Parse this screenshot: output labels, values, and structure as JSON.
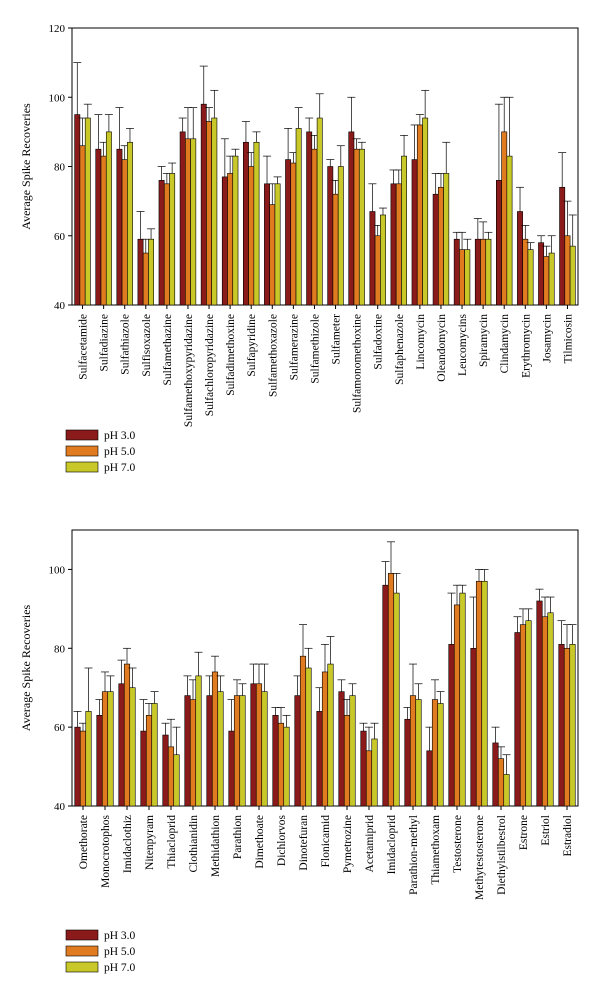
{
  "chart_data": [
    {
      "type": "bar",
      "ylabel": "Average Spike Recoveries",
      "xlabel": "",
      "ylim": [
        40,
        120
      ],
      "yticks": [
        40,
        60,
        80,
        100,
        120
      ],
      "categories": [
        "Sulfacetamide",
        "Sulfadiazine",
        "Sulfathiazole",
        "Sulfisoxazole",
        "Sulfamethazine",
        "Sulfamethoxypyridazine",
        "Sulfachloropyridazine",
        "Sulfadimethoxine",
        "Sulfapyridine",
        "Sulfamethoxazole",
        "Sulfamerazine",
        "Sulfamethizole",
        "Sulfameter",
        "Sulfamonomethoxine",
        "Sulfadoxine",
        "Sulfaphenazole",
        "Lincomycin",
        "Oleandomycin",
        "Leucomycins",
        "Spiramycin",
        "Clindamycin",
        "Erythromycin",
        "Josamycin",
        "Tilmicosin"
      ],
      "series": [
        {
          "name": "pH 3.0",
          "color": "#8B1A1A",
          "values": [
            95,
            85,
            85,
            59,
            76,
            90,
            98,
            77,
            87,
            75,
            82,
            90,
            80,
            90,
            67,
            75,
            82,
            72,
            59,
            59,
            76,
            67,
            58,
            74
          ],
          "errors": [
            15,
            10,
            12,
            8,
            4,
            4,
            11,
            11,
            6,
            8,
            9,
            4,
            2,
            10,
            8,
            4,
            10,
            6,
            2,
            6,
            22,
            7,
            2,
            10
          ]
        },
        {
          "name": "pH 5.0",
          "color": "#E07B20",
          "values": [
            86,
            83,
            82,
            55,
            75,
            88,
            93,
            78,
            80,
            69,
            81,
            85,
            72,
            85,
            60,
            75,
            92,
            74,
            56,
            59,
            90,
            59,
            54,
            60
          ],
          "errors": [
            8,
            4,
            4,
            4,
            3,
            9,
            4,
            5,
            4,
            6,
            3,
            4,
            4,
            3,
            3,
            4,
            3,
            4,
            5,
            5,
            10,
            4,
            3,
            10
          ]
        },
        {
          "name": "pH 7.0",
          "color": "#C8C828",
          "values": [
            94,
            90,
            87,
            59,
            78,
            88,
            94,
            83,
            87,
            75,
            91,
            94,
            80,
            85,
            66,
            83,
            94,
            78,
            56,
            59,
            83,
            56,
            55,
            57
          ],
          "errors": [
            4,
            5,
            4,
            3,
            3,
            9,
            8,
            2,
            3,
            2,
            6,
            7,
            6,
            2,
            2,
            6,
            8,
            9,
            3,
            2,
            17,
            2,
            5,
            9
          ]
        }
      ],
      "legend": [
        "pH 3.0",
        "pH 5.0",
        "pH 7.0"
      ]
    },
    {
      "type": "bar",
      "ylabel": "Average Spike Recoveries",
      "xlabel": "",
      "ylim": [
        40,
        110
      ],
      "yticks": [
        40,
        60,
        80,
        100
      ],
      "categories": [
        "Omethorate",
        "Monocrotophos",
        "Imidaclothiz",
        "Nitenpyram",
        "Thiacloprid",
        "Clothianidin",
        "Methidathion",
        "Parathion",
        "Dimethoate",
        "Dichlorvos",
        "Dinotefuran",
        "Flonicamid",
        "Pymetrozine",
        "Acetamiprid",
        "Imidacloprid",
        "Parathion-methyl",
        "Thiamethoxam",
        "Testosterone",
        "Methytestosterone",
        "Diethylstilbestrol",
        "Estrone",
        "Estriol",
        "Estradiol"
      ],
      "series": [
        {
          "name": "pH 3.0",
          "color": "#8B1A1A",
          "values": [
            60,
            63,
            71,
            59,
            58,
            68,
            68,
            59,
            71,
            63,
            68,
            64,
            69,
            59,
            96,
            62,
            54,
            81,
            80,
            56,
            84,
            92,
            81
          ],
          "errors": [
            4,
            4,
            6,
            8,
            3,
            5,
            5,
            8,
            5,
            2,
            5,
            6,
            3,
            2,
            6,
            3,
            6,
            13,
            13,
            4,
            4,
            3,
            6
          ]
        },
        {
          "name": "pH 5.0",
          "color": "#E07B20",
          "values": [
            59,
            69,
            76,
            63,
            55,
            67,
            74,
            68,
            71,
            61,
            78,
            74,
            63,
            54,
            99,
            68,
            67,
            91,
            97,
            52,
            86,
            88,
            80
          ],
          "errors": [
            2,
            5,
            4,
            3,
            7,
            5,
            4,
            4,
            5,
            4,
            8,
            7,
            4,
            6,
            8,
            8,
            5,
            5,
            3,
            3,
            4,
            5,
            6
          ]
        },
        {
          "name": "pH 7.0",
          "color": "#C8C828",
          "values": [
            64,
            69,
            70,
            66,
            53,
            73,
            69,
            68,
            69,
            60,
            75,
            76,
            68,
            57,
            94,
            67,
            66,
            94,
            97,
            48,
            87,
            89,
            81
          ],
          "errors": [
            11,
            4,
            5,
            3,
            7,
            6,
            4,
            3,
            7,
            3,
            5,
            7,
            3,
            4,
            5,
            4,
            3,
            2,
            3,
            5,
            3,
            4,
            5
          ]
        }
      ],
      "legend": [
        "pH 3.0",
        "pH 5.0",
        "pH 7.0"
      ]
    }
  ]
}
